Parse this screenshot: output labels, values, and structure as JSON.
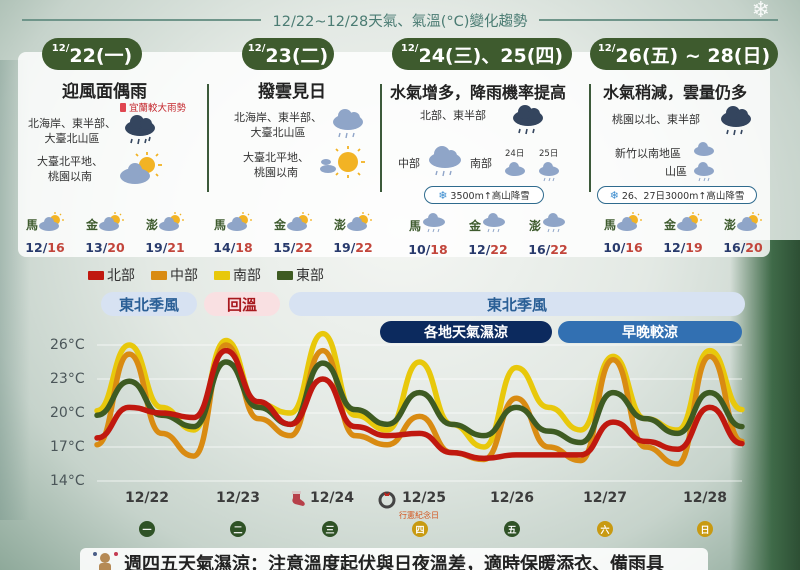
{
  "title": "12/22~12/28天氣、氣溫(°C)變化趨勢",
  "forecast_columns": [
    {
      "date_sup": "12/",
      "date": "22(一)",
      "headline": "迎風面偶雨",
      "warning": "宜蘭較大雨勢",
      "regions": [
        {
          "label": "北海岸、東半部、\n大臺北山區",
          "icon": "heavy-rain-cloud-icon"
        },
        {
          "label": "大臺北平地、\n桃園以南",
          "icon": "partly-sunny-icon"
        }
      ],
      "islands": [
        {
          "name": "馬",
          "low": "12",
          "high": "16",
          "icon": "partly-sunny-icon"
        },
        {
          "name": "金",
          "low": "13",
          "high": "20",
          "icon": "partly-sunny-icon"
        },
        {
          "name": "澎",
          "low": "19",
          "high": "21",
          "icon": "partly-sunny-icon"
        }
      ]
    },
    {
      "date_sup": "12/",
      "date": "23(二)",
      "headline": "撥雲見日",
      "regions": [
        {
          "label": "北海岸、東半部、\n大臺北山區",
          "icon": "light-rain-cloud-icon"
        },
        {
          "label": "大臺北平地、\n桃園以南",
          "icon": "sunny-icon"
        }
      ],
      "islands": [
        {
          "name": "馬",
          "low": "14",
          "high": "18",
          "icon": "partly-sunny-icon"
        },
        {
          "name": "金",
          "low": "15",
          "high": "22",
          "icon": "partly-sunny-icon"
        },
        {
          "name": "澎",
          "low": "19",
          "high": "22",
          "icon": "partly-sunny-icon"
        }
      ]
    },
    {
      "date_sup": "12/",
      "date": "24(三)、25(四)",
      "headline": "水氣增多，降雨機率提高",
      "regions": [
        {
          "label": "北部、東半部",
          "icon": "heavy-rain-cloud-icon"
        },
        {
          "label": "中部",
          "icon": "light-rain-cloud-icon"
        },
        {
          "label": "南部",
          "icon": "cloud-icon"
        }
      ],
      "south_day_labels": [
        "24日",
        "25日"
      ],
      "snow_note": "3500m↑高山降雪",
      "islands": [
        {
          "name": "馬",
          "low": "10",
          "high": "18",
          "icon": "rain-icon"
        },
        {
          "name": "金",
          "low": "12",
          "high": "22",
          "icon": "rain-icon"
        },
        {
          "name": "澎",
          "low": "16",
          "high": "22",
          "icon": "rain-icon"
        }
      ]
    },
    {
      "date_sup": "12/",
      "date": "26(五) ~ 28(日)",
      "headline": "水氣稍減，雲量仍多",
      "regions": [
        {
          "label": "桃園以北、東半部",
          "icon": "heavy-rain-cloud-icon"
        },
        {
          "label": "新竹以南地區",
          "icon": "cloud-icon"
        },
        {
          "label": "山區",
          "icon": "light-rain-cloud-icon"
        }
      ],
      "snow_note": "26、27日3000m↑高山降雪",
      "islands": [
        {
          "name": "馬",
          "low": "10",
          "high": "16",
          "icon": "partly-sunny-icon"
        },
        {
          "name": "金",
          "low": "12",
          "high": "19",
          "icon": "partly-sunny-icon"
        },
        {
          "name": "澎",
          "low": "16",
          "high": "20",
          "icon": "partly-sunny-icon"
        }
      ]
    }
  ],
  "bands": {
    "row1": [
      {
        "label": "東北季風",
        "type": "ne"
      },
      {
        "label": "回溫",
        "type": "warm"
      },
      {
        "label": "東北季風",
        "type": "ne"
      }
    ],
    "row2": [
      {
        "label": "各地天氣濕涼",
        "type": "dark"
      },
      {
        "label": "早晚較涼",
        "type": "mid"
      }
    ]
  },
  "holiday_label": "行憲紀念日",
  "weekdays": [
    {
      "label": "一",
      "color": "#2f5226"
    },
    {
      "label": "二",
      "color": "#2f5226"
    },
    {
      "label": "三",
      "color": "#2f5226"
    },
    {
      "label": "四",
      "color": "#c89a12"
    },
    {
      "label": "五",
      "color": "#2f5226"
    },
    {
      "label": "六",
      "color": "#c89a12"
    },
    {
      "label": "日",
      "color": "#c89a12"
    }
  ],
  "footer_text": "週四五天氣濕涼：注意溫度起伏與日夜溫差，適時保暖添衣、備雨具",
  "chart_data": {
    "type": "line",
    "title": "12/22~12/28天氣、氣溫(°C)變化趨勢",
    "xlabel": "",
    "ylabel": "°C",
    "ylim": [
      14,
      26
    ],
    "yticks": [
      "26°C",
      "23°C",
      "20°C",
      "17°C",
      "14°C"
    ],
    "categories": [
      "12/22",
      "12/23",
      "12/24",
      "12/25",
      "12/26",
      "12/27",
      "12/28"
    ],
    "x_resolution": "3 points per day: early morning, afternoon, night",
    "x": [
      "12/22 06",
      "12/22 14",
      "12/22 22",
      "12/23 06",
      "12/23 14",
      "12/23 22",
      "12/24 06",
      "12/24 14",
      "12/24 22",
      "12/25 06",
      "12/25 14",
      "12/25 22",
      "12/26 06",
      "12/26 14",
      "12/26 22",
      "12/27 06",
      "12/27 14",
      "12/27 22",
      "12/28 06",
      "12/28 14",
      "12/28 22"
    ],
    "series": [
      {
        "name": "北部",
        "color": "#c0180f",
        "values": [
          17.8,
          20.5,
          20.0,
          19.6,
          25.5,
          21.0,
          19.0,
          23.0,
          18.8,
          18.0,
          18.2,
          16.5,
          16.0,
          16.3,
          16.3,
          16.3,
          19.2,
          17.5,
          16.8,
          20.5,
          17.3
        ]
      },
      {
        "name": "中部",
        "color": "#d98b12",
        "values": [
          17.2,
          25.2,
          18.2,
          16.2,
          26.0,
          19.5,
          18.0,
          25.5,
          18.0,
          17.2,
          19.7,
          16.5,
          15.9,
          21.3,
          17.0,
          15.8,
          24.7,
          17.0,
          15.5,
          25.0,
          17.5
        ]
      },
      {
        "name": "南部",
        "color": "#e8c80b",
        "values": [
          20.2,
          26.0,
          20.5,
          18.5,
          26.4,
          20.8,
          20.0,
          27.0,
          19.8,
          18.5,
          24.5,
          19.0,
          17.0,
          24.0,
          20.5,
          18.5,
          25.0,
          19.5,
          18.5,
          25.5,
          20.3
        ]
      },
      {
        "name": "東部",
        "color": "#3e5b22",
        "values": [
          19.8,
          22.8,
          19.8,
          18.8,
          24.5,
          20.5,
          19.0,
          24.4,
          20.3,
          19.0,
          21.8,
          19.0,
          18.0,
          20.5,
          18.4,
          17.4,
          21.8,
          19.5,
          18.2,
          21.8,
          18.8
        ]
      }
    ],
    "legend_position": "top-left",
    "grid": true
  }
}
